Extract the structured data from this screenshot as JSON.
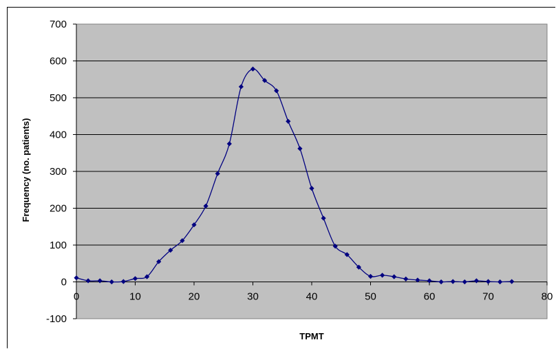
{
  "chart_data": {
    "type": "line",
    "title": "",
    "xlabel": "TPMT",
    "ylabel": "Frequency (no. patients)",
    "xlim": [
      0,
      80
    ],
    "ylim": [
      -100,
      700
    ],
    "x_ticks": [
      0,
      10,
      20,
      30,
      40,
      50,
      60,
      70,
      80
    ],
    "y_ticks": [
      -100,
      0,
      100,
      200,
      300,
      400,
      500,
      600,
      700
    ],
    "grid": "horizontal",
    "legend": "none",
    "plot_background": "#c0c0c0",
    "series": [
      {
        "color": "#000080",
        "x": [
          0,
          2,
          4,
          6,
          8,
          10,
          12,
          14,
          16,
          18,
          20,
          22,
          24,
          26,
          28,
          30,
          32,
          34,
          36,
          38,
          40,
          42,
          44,
          46,
          48,
          50,
          52,
          54,
          56,
          58,
          60,
          62,
          64,
          66,
          68,
          70,
          72,
          74
        ],
        "y": [
          11,
          3,
          3,
          0,
          1,
          9,
          14,
          55,
          86,
          112,
          155,
          206,
          294,
          375,
          530,
          578,
          547,
          519,
          436,
          362,
          254,
          173,
          97,
          74,
          40,
          15,
          18,
          14,
          8,
          5,
          3,
          0,
          1,
          0,
          3,
          1,
          0,
          1
        ]
      }
    ]
  }
}
